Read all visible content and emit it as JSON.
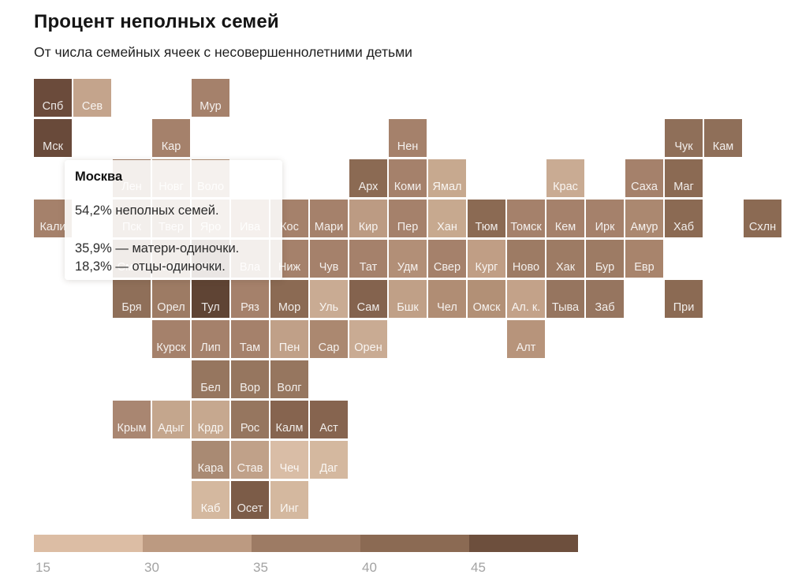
{
  "header": {
    "title": "Процент неполных семей",
    "subtitle": "От числа семейных ячеек с несовершеннолетними детьми"
  },
  "tooltip": {
    "title": "Москва",
    "line1": "54,2% неполных семей.",
    "line2": "35,9% — матери-одиночки.",
    "line3": "18,3% — отцы-одиночки."
  },
  "legend": {
    "segments": [
      {
        "label": "15",
        "color": "#dcbda4"
      },
      {
        "label": "30",
        "color": "#bc9a81"
      },
      {
        "label": "35",
        "color": "#9d7b64"
      },
      {
        "label": "40",
        "color": "#8b6a53"
      },
      {
        "label": "45",
        "color": "#6d4f3d"
      }
    ]
  },
  "chart_data": {
    "type": "heatmap",
    "subtype": "tile-grid-cartogram",
    "title": "Процент неполных семей",
    "subtitle": "От числа семейных ячеек с несовершеннолетними детьми",
    "unit": "%",
    "legend_ticks": [
      15,
      30,
      35,
      40,
      45
    ],
    "legend_colors": [
      "#dcbda4",
      "#bc9a81",
      "#9d7b64",
      "#8b6a53",
      "#6d4f3d"
    ],
    "highlighted_region": {
      "name": "Москва",
      "single_parent_families": "54,2%",
      "single_mothers": "35,9%",
      "single_fathers": "18,3%"
    },
    "tiles": [
      {
        "label": "Спб",
        "row": 0,
        "col": 0,
        "color": "#6b4b3b"
      },
      {
        "label": "Сев",
        "row": 0,
        "col": 1,
        "color": "#c4a48c"
      },
      {
        "label": "Мур",
        "row": 0,
        "col": 4,
        "color": "#a5816b"
      },
      {
        "label": "Мск",
        "row": 1,
        "col": 0,
        "color": "#694a3a"
      },
      {
        "label": "Кар",
        "row": 1,
        "col": 3,
        "color": "#a5816b"
      },
      {
        "label": "Нен",
        "row": 1,
        "col": 9,
        "color": "#a5816b"
      },
      {
        "label": "Чук",
        "row": 1,
        "col": 16,
        "color": "#8f6f59"
      },
      {
        "label": "Кам",
        "row": 1,
        "col": 17,
        "color": "#8f6f59"
      },
      {
        "label": "Лен",
        "row": 2,
        "col": 2,
        "color": "#a5816b"
      },
      {
        "label": "Новг",
        "row": 2,
        "col": 3,
        "color": "#b4927a"
      },
      {
        "label": "Воло",
        "row": 2,
        "col": 4,
        "color": "#b4927a"
      },
      {
        "label": "Арх",
        "row": 2,
        "col": 8,
        "color": "#8b6a53"
      },
      {
        "label": "Коми",
        "row": 2,
        "col": 9,
        "color": "#a5816b"
      },
      {
        "label": "Ямал",
        "row": 2,
        "col": 10,
        "color": "#c7a98f"
      },
      {
        "label": "Крас",
        "row": 2,
        "col": 13,
        "color": "#c9ab93"
      },
      {
        "label": "Саха",
        "row": 2,
        "col": 15,
        "color": "#a5816b"
      },
      {
        "label": "Маг",
        "row": 2,
        "col": 16,
        "color": "#8b6a53"
      },
      {
        "label": "Кали",
        "row": 3,
        "col": 0,
        "color": "#a5816b"
      },
      {
        "label": "Пск",
        "row": 3,
        "col": 2,
        "color": "#a5816b"
      },
      {
        "label": "Твер",
        "row": 3,
        "col": 3,
        "color": "#a5816b"
      },
      {
        "label": "Яро",
        "row": 3,
        "col": 4,
        "color": "#b4927a"
      },
      {
        "label": "Ива",
        "row": 3,
        "col": 5,
        "color": "#b08c74"
      },
      {
        "label": "Кос",
        "row": 3,
        "col": 6,
        "color": "#a5816b"
      },
      {
        "label": "Мари",
        "row": 3,
        "col": 7,
        "color": "#a5816b"
      },
      {
        "label": "Кир",
        "row": 3,
        "col": 8,
        "color": "#bc9b83"
      },
      {
        "label": "Пер",
        "row": 3,
        "col": 9,
        "color": "#a5816b"
      },
      {
        "label": "Хан",
        "row": 3,
        "col": 10,
        "color": "#c7a98f"
      },
      {
        "label": "Тюм",
        "row": 3,
        "col": 11,
        "color": "#8b6a53"
      },
      {
        "label": "Томск",
        "row": 3,
        "col": 12,
        "color": "#a5816b"
      },
      {
        "label": "Кем",
        "row": 3,
        "col": 13,
        "color": "#a5816b"
      },
      {
        "label": "Ирк",
        "row": 3,
        "col": 14,
        "color": "#a5816b"
      },
      {
        "label": "Амур",
        "row": 3,
        "col": 15,
        "color": "#ab8870"
      },
      {
        "label": "Хаб",
        "row": 3,
        "col": 16,
        "color": "#8b6a53"
      },
      {
        "label": "Схлн",
        "row": 3,
        "col": 18,
        "color": "#8b6a53"
      },
      {
        "label": "Смол",
        "row": 4,
        "col": 2,
        "color": "#8f6f59"
      },
      {
        "label": "Калу",
        "row": 4,
        "col": 3,
        "color": "#9d7b64"
      },
      {
        "label": "Мос",
        "row": 4,
        "col": 4,
        "color": "#5e4233"
      },
      {
        "label": "Вла",
        "row": 4,
        "col": 5,
        "color": "#a5816b"
      },
      {
        "label": "Ниж",
        "row": 4,
        "col": 6,
        "color": "#a5816b"
      },
      {
        "label": "Чув",
        "row": 4,
        "col": 7,
        "color": "#a5816b"
      },
      {
        "label": "Тат",
        "row": 4,
        "col": 8,
        "color": "#a5816b"
      },
      {
        "label": "Удм",
        "row": 4,
        "col": 9,
        "color": "#b28f77"
      },
      {
        "label": "Свер",
        "row": 4,
        "col": 10,
        "color": "#a5816b"
      },
      {
        "label": "Кург",
        "row": 4,
        "col": 11,
        "color": "#c09e85"
      },
      {
        "label": "Ново",
        "row": 4,
        "col": 12,
        "color": "#9d7b64"
      },
      {
        "label": "Хак",
        "row": 4,
        "col": 13,
        "color": "#9d7b64"
      },
      {
        "label": "Бур",
        "row": 4,
        "col": 14,
        "color": "#9d7b64"
      },
      {
        "label": "Евр",
        "row": 4,
        "col": 15,
        "color": "#a8846c"
      },
      {
        "label": "Бря",
        "row": 5,
        "col": 2,
        "color": "#8f6f59"
      },
      {
        "label": "Орел",
        "row": 5,
        "col": 3,
        "color": "#9d7b64"
      },
      {
        "label": "Тул",
        "row": 5,
        "col": 4,
        "color": "#5f4434"
      },
      {
        "label": "Ряз",
        "row": 5,
        "col": 5,
        "color": "#a5816b"
      },
      {
        "label": "Мор",
        "row": 5,
        "col": 6,
        "color": "#8b6a53"
      },
      {
        "label": "Уль",
        "row": 5,
        "col": 7,
        "color": "#c9ab93"
      },
      {
        "label": "Сам",
        "row": 5,
        "col": 8,
        "color": "#84634e"
      },
      {
        "label": "Бшк",
        "row": 5,
        "col": 9,
        "color": "#c0a087"
      },
      {
        "label": "Чел",
        "row": 5,
        "col": 10,
        "color": "#b08d74"
      },
      {
        "label": "Омск",
        "row": 5,
        "col": 11,
        "color": "#b29076"
      },
      {
        "label": "Ал. к.",
        "row": 5,
        "col": 12,
        "color": "#c3a289"
      },
      {
        "label": "Тыва",
        "row": 5,
        "col": 13,
        "color": "#96755f"
      },
      {
        "label": "Заб",
        "row": 5,
        "col": 14,
        "color": "#96755f"
      },
      {
        "label": "При",
        "row": 5,
        "col": 16,
        "color": "#8b6a53"
      },
      {
        "label": "Курск",
        "row": 6,
        "col": 3,
        "color": "#a5816b"
      },
      {
        "label": "Лип",
        "row": 6,
        "col": 4,
        "color": "#a5816b"
      },
      {
        "label": "Там",
        "row": 6,
        "col": 5,
        "color": "#a5816b"
      },
      {
        "label": "Пен",
        "row": 6,
        "col": 6,
        "color": "#c0a088"
      },
      {
        "label": "Сар",
        "row": 6,
        "col": 7,
        "color": "#ab8870"
      },
      {
        "label": "Орен",
        "row": 6,
        "col": 8,
        "color": "#c9ab93"
      },
      {
        "label": "Алт",
        "row": 6,
        "col": 12,
        "color": "#b7947b"
      },
      {
        "label": "Бел",
        "row": 7,
        "col": 4,
        "color": "#96765f"
      },
      {
        "label": "Вор",
        "row": 7,
        "col": 5,
        "color": "#96765f"
      },
      {
        "label": "Волг",
        "row": 7,
        "col": 6,
        "color": "#96765f"
      },
      {
        "label": "Крым",
        "row": 8,
        "col": 2,
        "color": "#a98671"
      },
      {
        "label": "Адыг",
        "row": 8,
        "col": 3,
        "color": "#c4a68d"
      },
      {
        "label": "Крдр",
        "row": 8,
        "col": 4,
        "color": "#c6a88f"
      },
      {
        "label": "Рос",
        "row": 8,
        "col": 5,
        "color": "#96765f"
      },
      {
        "label": "Калм",
        "row": 8,
        "col": 6,
        "color": "#86644f"
      },
      {
        "label": "Аст",
        "row": 8,
        "col": 7,
        "color": "#86644f"
      },
      {
        "label": "Кара",
        "row": 9,
        "col": 4,
        "color": "#a98a73"
      },
      {
        "label": "Став",
        "row": 9,
        "col": 5,
        "color": "#c0a189"
      },
      {
        "label": "Чеч",
        "row": 9,
        "col": 6,
        "color": "#d9bda6"
      },
      {
        "label": "Даг",
        "row": 9,
        "col": 7,
        "color": "#d4b89f"
      },
      {
        "label": "Каб",
        "row": 10,
        "col": 4,
        "color": "#d4b89f"
      },
      {
        "label": "Осет",
        "row": 10,
        "col": 5,
        "color": "#7c5c48"
      },
      {
        "label": "Инг",
        "row": 10,
        "col": 6,
        "color": "#d4b89f"
      }
    ]
  }
}
